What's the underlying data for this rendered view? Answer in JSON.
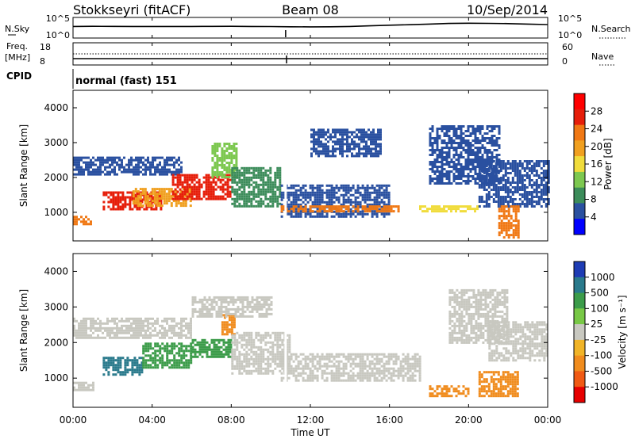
{
  "header": {
    "station": "Stokkseyri (fitACF)",
    "beam": "Beam 08",
    "date": "10/Sep/2014"
  },
  "noise_panel": {
    "left_label": "N.Sky",
    "right_label": "N.Search",
    "ticks_left": [
      "10^5",
      "10^0"
    ],
    "ticks_right": [
      "10^5",
      "10^0"
    ]
  },
  "freq_panel": {
    "left_label_1": "Freq.",
    "left_label_2": "[MHz]",
    "right_label": "Nave",
    "ticks_left": [
      "18",
      "8"
    ],
    "ticks_right": [
      "60",
      "0"
    ]
  },
  "cpid": {
    "label": "CPID",
    "value": "normal (fast) 151"
  },
  "x_axis": {
    "ticks": [
      "00:00",
      "04:00",
      "08:00",
      "12:00",
      "16:00",
      "20:00",
      "00:00"
    ],
    "label": "Time UT"
  },
  "power_panel": {
    "ylabel": "Slant Range [km]",
    "yticks": [
      "1000",
      "2000",
      "3000",
      "4000"
    ],
    "colorbar_label": "Power [dB]",
    "colorbar_ticks": [
      "4",
      "8",
      "12",
      "16",
      "20",
      "24",
      "28"
    ]
  },
  "velocity_panel": {
    "ylabel": "Slant Range [km]",
    "yticks": [
      "1000",
      "2000",
      "3000",
      "4000"
    ],
    "colorbar_label": "Velocity [m s⁻¹]",
    "colorbar_ticks": [
      "1000",
      "500",
      "100",
      "25",
      "-25",
      "-100",
      "-500",
      "-1000"
    ]
  },
  "colors": {
    "power_scale": [
      "#0000ff",
      "#2a50a0",
      "#3c8c5a",
      "#7dc850",
      "#f0dc3c",
      "#f0a020",
      "#f07814",
      "#e61e0a",
      "#ff0000"
    ],
    "velocity_scale": [
      "#1e3cb4",
      "#2a7a8c",
      "#3c9c4a",
      "#78c846",
      "#c8c8c0",
      "#f0b428",
      "#f08c1e",
      "#f05a14",
      "#e60000"
    ],
    "ground_scatter": "#c8c8c0"
  },
  "chart_data": [
    {
      "type": "line",
      "name": "noise",
      "x_range_hours": [
        0,
        24
      ],
      "y_scale": "log",
      "ylim": [
        1,
        100000
      ],
      "x": [
        0,
        1,
        2,
        3,
        4,
        5,
        6,
        7,
        8,
        9,
        10,
        11,
        12,
        13,
        14,
        15,
        16,
        17,
        18,
        19,
        20,
        21,
        22,
        23,
        24
      ],
      "series": [
        {
          "name": "N.Sky",
          "values": [
            900,
            1000,
            950,
            900,
            880,
            870,
            900,
            950,
            1000,
            900,
            800,
            700,
            650,
            700,
            900,
            1500,
            2500,
            3500,
            6000,
            10000,
            12000,
            11000,
            9000,
            6000,
            4000
          ]
        },
        {
          "name": "N.Search",
          "values": [
            850,
            950,
            900,
            870,
            860,
            850,
            880,
            930,
            980,
            880,
            780,
            690,
            640,
            690,
            880,
            1450,
            2400,
            3400,
            5800,
            9500,
            11500,
            10500,
            8600,
            5800,
            3900
          ]
        }
      ]
    },
    {
      "type": "line",
      "name": "frequency_nave",
      "x_range_hours": [
        0,
        24
      ],
      "series": [
        {
          "name": "Freq. [MHz]",
          "values_const": 10.4,
          "ylim": [
            8,
            18
          ]
        },
        {
          "name": "Nave",
          "values_const": 29,
          "ylim": [
            0,
            60
          ]
        }
      ]
    },
    {
      "type": "heatmap",
      "name": "power",
      "xlabel": "Time UT",
      "ylabel": "Slant Range [km]",
      "x_range_hours": [
        0,
        24
      ],
      "ylim": [
        180,
        4500
      ],
      "zlabel": "Power [dB]",
      "zlim": [
        0,
        30
      ],
      "regions": [
        {
          "t": [
            0.0,
            0.9
          ],
          "r": [
            650,
            900
          ],
          "z": 20
        },
        {
          "t": [
            0.0,
            5.5
          ],
          "r": [
            2100,
            2600
          ],
          "z": 6
        },
        {
          "t": [
            1.5,
            4.5
          ],
          "r": [
            1100,
            1600
          ],
          "z": 24
        },
        {
          "t": [
            3.0,
            6.0
          ],
          "r": [
            1200,
            1700
          ],
          "z": 18
        },
        {
          "t": [
            5.0,
            8.0
          ],
          "r": [
            1400,
            2100
          ],
          "z": 24
        },
        {
          "t": [
            7.0,
            8.3
          ],
          "r": [
            2000,
            3000
          ],
          "z": 12
        },
        {
          "t": [
            8.0,
            10.5
          ],
          "r": [
            1200,
            2300
          ],
          "z": 8
        },
        {
          "t": [
            10.5,
            16.0
          ],
          "r": [
            900,
            1800
          ],
          "z": 6
        },
        {
          "t": [
            10.5,
            16.5
          ],
          "r": [
            1000,
            1200
          ],
          "z": 22
        },
        {
          "t": [
            12.0,
            15.5
          ],
          "r": [
            2600,
            3400
          ],
          "z": 4
        },
        {
          "t": [
            17.5,
            20.5
          ],
          "r": [
            1000,
            1200
          ],
          "z": 14
        },
        {
          "t": [
            18.0,
            21.5
          ],
          "r": [
            1800,
            3500
          ],
          "z": 5
        },
        {
          "t": [
            20.5,
            24.0
          ],
          "r": [
            1200,
            2500
          ],
          "z": 6
        },
        {
          "t": [
            21.5,
            22.5
          ],
          "r": [
            300,
            1200
          ],
          "z": 22
        }
      ]
    },
    {
      "type": "heatmap",
      "name": "velocity",
      "xlabel": "Time UT",
      "ylabel": "Slant Range [km]",
      "x_range_hours": [
        0,
        24
      ],
      "ylim": [
        180,
        4500
      ],
      "zlabel": "Velocity [m s⁻¹]",
      "zlim": [
        -1000,
        1000
      ],
      "regions": [
        {
          "t": [
            0.0,
            1.0
          ],
          "r": [
            650,
            900
          ],
          "z": "ground"
        },
        {
          "t": [
            0.0,
            6.0
          ],
          "r": [
            2100,
            2700
          ],
          "z": "ground"
        },
        {
          "t": [
            1.5,
            3.5
          ],
          "r": [
            1100,
            1600
          ],
          "z": 800
        },
        {
          "t": [
            3.5,
            6.0
          ],
          "r": [
            1300,
            2000
          ],
          "z": 300
        },
        {
          "t": [
            6.0,
            8.0
          ],
          "r": [
            1600,
            2100
          ],
          "z": 100
        },
        {
          "t": [
            7.5,
            8.2
          ],
          "r": [
            2200,
            2800
          ],
          "z": -300
        },
        {
          "t": [
            8.0,
            11.0
          ],
          "r": [
            1100,
            2300
          ],
          "z": "ground"
        },
        {
          "t": [
            6.0,
            10.0
          ],
          "r": [
            2700,
            3300
          ],
          "z": "ground"
        },
        {
          "t": [
            10.5,
            17.5
          ],
          "r": [
            900,
            1700
          ],
          "z": "ground"
        },
        {
          "t": [
            18.0,
            20.0
          ],
          "r": [
            500,
            800
          ],
          "z": -400
        },
        {
          "t": [
            19.0,
            22.0
          ],
          "r": [
            2000,
            3500
          ],
          "z": "ground"
        },
        {
          "t": [
            21.0,
            24.0
          ],
          "r": [
            1500,
            2600
          ],
          "z": "ground"
        },
        {
          "t": [
            20.5,
            22.5
          ],
          "r": [
            500,
            1200
          ],
          "z": -250
        }
      ]
    }
  ]
}
